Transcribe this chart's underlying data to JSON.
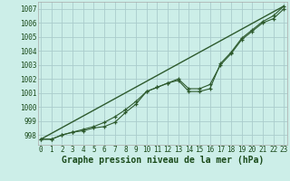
{
  "title": "Graphe pression niveau de la mer (hPa)",
  "bg_color": "#cceee8",
  "grid_color": "#aacccc",
  "line_color": "#2d5a2d",
  "xlim": [
    -0.3,
    23.3
  ],
  "ylim": [
    997.3,
    1007.5
  ],
  "yticks": [
    998,
    999,
    1000,
    1001,
    1002,
    1003,
    1004,
    1005,
    1006,
    1007
  ],
  "xticks": [
    0,
    1,
    2,
    3,
    4,
    5,
    6,
    7,
    8,
    9,
    10,
    11,
    12,
    13,
    14,
    15,
    16,
    17,
    18,
    19,
    20,
    21,
    22,
    23
  ],
  "irregular_x": [
    0,
    1,
    2,
    3,
    4,
    5,
    6,
    7,
    8,
    9,
    10,
    11,
    12,
    13,
    14,
    15,
    16,
    17,
    18,
    19,
    20,
    21,
    22,
    23
  ],
  "irregular_y": [
    997.7,
    997.7,
    998.0,
    998.2,
    998.3,
    998.5,
    998.6,
    998.9,
    999.6,
    1000.2,
    1001.1,
    1001.4,
    1001.7,
    1001.9,
    1001.1,
    1001.1,
    1001.3,
    1003.1,
    1003.9,
    1004.9,
    1005.5,
    1006.1,
    1006.5,
    1007.2
  ],
  "smooth_x": [
    0,
    1,
    2,
    3,
    4,
    5,
    6,
    7,
    8,
    9,
    10,
    11,
    12,
    13,
    14,
    15,
    16,
    17,
    18,
    19,
    20,
    21,
    22,
    23
  ],
  "smooth_y": [
    997.7,
    997.7,
    998.0,
    998.2,
    998.4,
    998.6,
    998.9,
    999.3,
    999.8,
    1000.4,
    1001.1,
    1001.4,
    1001.7,
    1002.0,
    1001.3,
    1001.3,
    1001.6,
    1003.0,
    1003.8,
    1004.8,
    1005.4,
    1006.0,
    1006.3,
    1007.0
  ],
  "trend_x": [
    0,
    23
  ],
  "trend_y": [
    997.7,
    1007.2
  ],
  "tick_fontsize": 5.5,
  "label_fontsize": 7.0
}
